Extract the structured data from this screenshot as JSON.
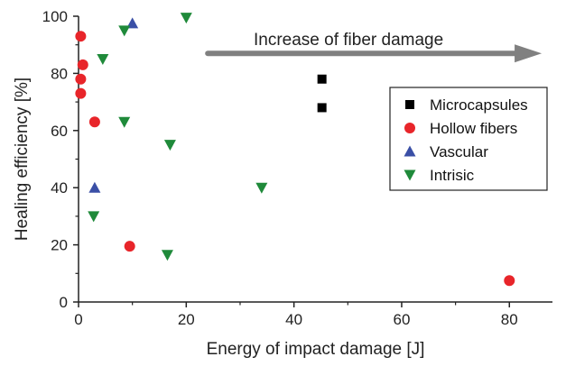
{
  "chart_data": {
    "type": "scatter",
    "title": "",
    "xlabel": "Energy of impact damage [J]",
    "ylabel": "Healing efficiency [%]",
    "xlim": [
      0,
      88
    ],
    "ylim": [
      0,
      100
    ],
    "xticks": [
      0,
      20,
      40,
      60,
      80
    ],
    "yticks": [
      0,
      20,
      40,
      60,
      80,
      100
    ],
    "grid": false,
    "legend_position": "right",
    "annotation": {
      "text": "Increase of fiber damage",
      "arrow_from": [
        24,
        87
      ],
      "arrow_to": [
        86,
        87
      ]
    },
    "series": [
      {
        "name": "Microcapsules",
        "marker": "square",
        "color": "#000000",
        "points": [
          [
            45.2,
            78
          ],
          [
            45.2,
            68
          ]
        ]
      },
      {
        "name": "Hollow fibers",
        "marker": "circle",
        "color": "#e8252a",
        "points": [
          [
            0.4,
            93
          ],
          [
            0.8,
            83
          ],
          [
            0.4,
            78
          ],
          [
            0.4,
            73
          ],
          [
            3,
            63
          ],
          [
            9.5,
            19.5
          ],
          [
            80,
            7.5
          ]
        ]
      },
      {
        "name": "Vascular",
        "marker": "triangle-up",
        "color": "#3a4fa6",
        "points": [
          [
            10,
            97.5
          ],
          [
            3,
            40
          ]
        ]
      },
      {
        "name": "Intrisic",
        "marker": "triangle-down",
        "color": "#1f8a3a",
        "points": [
          [
            20,
            99.5
          ],
          [
            8.5,
            95
          ],
          [
            4.5,
            85
          ],
          [
            8.5,
            63
          ],
          [
            17,
            55
          ],
          [
            34,
            40
          ],
          [
            2.8,
            30
          ],
          [
            16.5,
            16.5
          ]
        ]
      }
    ]
  }
}
